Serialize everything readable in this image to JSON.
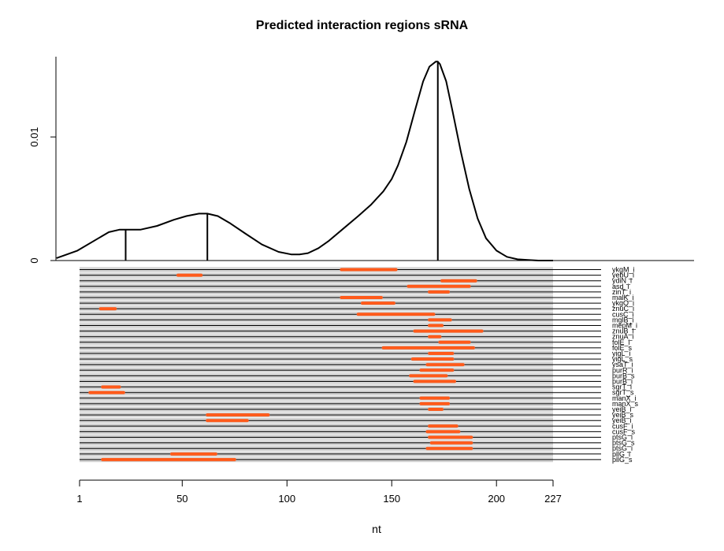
{
  "chart_data": {
    "type": "line",
    "title": "Predicted interaction regions sRNA",
    "xlabel": "nt",
    "ylabel": "",
    "xlim": [
      1,
      227
    ],
    "x_ticks": [
      1,
      50,
      100,
      150,
      200,
      227
    ],
    "y_ticks": [
      0,
      0.01
    ],
    "y_tick_labels": [
      "0",
      "0.01"
    ],
    "ylim": [
      0,
      0.0165
    ],
    "colors": {
      "density": "#000000",
      "interval": "#ff5a1a",
      "track": "#d3d3d3",
      "baseline": "#000000"
    },
    "density": {
      "x": [
        -10,
        0,
        10,
        15,
        20,
        23,
        30,
        38,
        46,
        52,
        58,
        62,
        67,
        73,
        80,
        88,
        96,
        102,
        106,
        110,
        115,
        120,
        127,
        134,
        140,
        146,
        150,
        153,
        157,
        161,
        165,
        168,
        171,
        172,
        173,
        176,
        179,
        183,
        187,
        191,
        195,
        200,
        205,
        210,
        215,
        220,
        227
      ],
      "y": [
        0.0002,
        0.0008,
        0.0018,
        0.0023,
        0.0025,
        0.0025,
        0.0025,
        0.0028,
        0.0033,
        0.0036,
        0.0038,
        0.0038,
        0.0036,
        0.003,
        0.0022,
        0.0013,
        0.0007,
        0.0005,
        0.0005,
        0.0006,
        0.001,
        0.0016,
        0.0026,
        0.0036,
        0.0045,
        0.0056,
        0.0066,
        0.0077,
        0.0096,
        0.0121,
        0.0145,
        0.0157,
        0.0161,
        0.0161,
        0.0159,
        0.0145,
        0.0121,
        0.0088,
        0.0058,
        0.0034,
        0.0018,
        0.0008,
        0.0003,
        0.0001,
        5e-05,
        0.0,
        0.0
      ]
    },
    "peaks": [
      {
        "x": 23,
        "y": 0.0025
      },
      {
        "x": 62,
        "y": 0.0038
      },
      {
        "x": 172,
        "y": 0.0161
      }
    ],
    "intervals": [
      {
        "name": "ykgM_i",
        "start": 126,
        "end": 152
      },
      {
        "name": "yebU_i",
        "start": 48,
        "end": 59
      },
      {
        "name": "ydiN_i",
        "start": 174,
        "end": 190
      },
      {
        "name": "asd_i",
        "start": 158,
        "end": 187
      },
      {
        "name": "zinT_i",
        "start": 168,
        "end": 177
      },
      {
        "name": "malK_i",
        "start": 126,
        "end": 145
      },
      {
        "name": "ykgO_i",
        "start": 136,
        "end": 151
      },
      {
        "name": "znuC_i",
        "start": 11,
        "end": 18
      },
      {
        "name": "cusC_i",
        "start": 134,
        "end": 170
      },
      {
        "name": "mglB_i",
        "start": 168,
        "end": 178
      },
      {
        "name": "mepM_i",
        "start": 168,
        "end": 174
      },
      {
        "name": "znuB_i",
        "start": 161,
        "end": 193
      },
      {
        "name": "znuA_i",
        "start": 168,
        "end": 173
      },
      {
        "name": "folE_i",
        "start": 173,
        "end": 187
      },
      {
        "name": "folE_s",
        "start": 146,
        "end": 189
      },
      {
        "name": "yigL_i",
        "start": 168,
        "end": 179
      },
      {
        "name": "yigL_s",
        "start": 160,
        "end": 179
      },
      {
        "name": "ysaT_i",
        "start": 167,
        "end": 184
      },
      {
        "name": "purR_i",
        "start": 164,
        "end": 179
      },
      {
        "name": "purB_s",
        "start": 159,
        "end": 176
      },
      {
        "name": "purB_i",
        "start": 161,
        "end": 180
      },
      {
        "name": "sgrT_i",
        "start": 12,
        "end": 20
      },
      {
        "name": "sgrT_s",
        "start": 6,
        "end": 22
      },
      {
        "name": "manX_i",
        "start": 164,
        "end": 177
      },
      {
        "name": "manX_s",
        "start": 164,
        "end": 177
      },
      {
        "name": "yeiB_i",
        "start": 168,
        "end": 174
      },
      {
        "name": "yeiB_s",
        "start": 62,
        "end": 91
      },
      {
        "name": "yeiB_i",
        "start": 62,
        "end": 81
      },
      {
        "name": "cusF_i",
        "start": 168,
        "end": 181
      },
      {
        "name": "cusF_s",
        "start": 167,
        "end": 182
      },
      {
        "name": "ptsG_i",
        "start": 168,
        "end": 188
      },
      {
        "name": "ptsG_s",
        "start": 169,
        "end": 188
      },
      {
        "name": "ptsG_i",
        "start": 167,
        "end": 188
      },
      {
        "name": "pllG_i",
        "start": 45,
        "end": 66
      },
      {
        "name": "pllG_s",
        "start": 12,
        "end": 75
      }
    ]
  }
}
